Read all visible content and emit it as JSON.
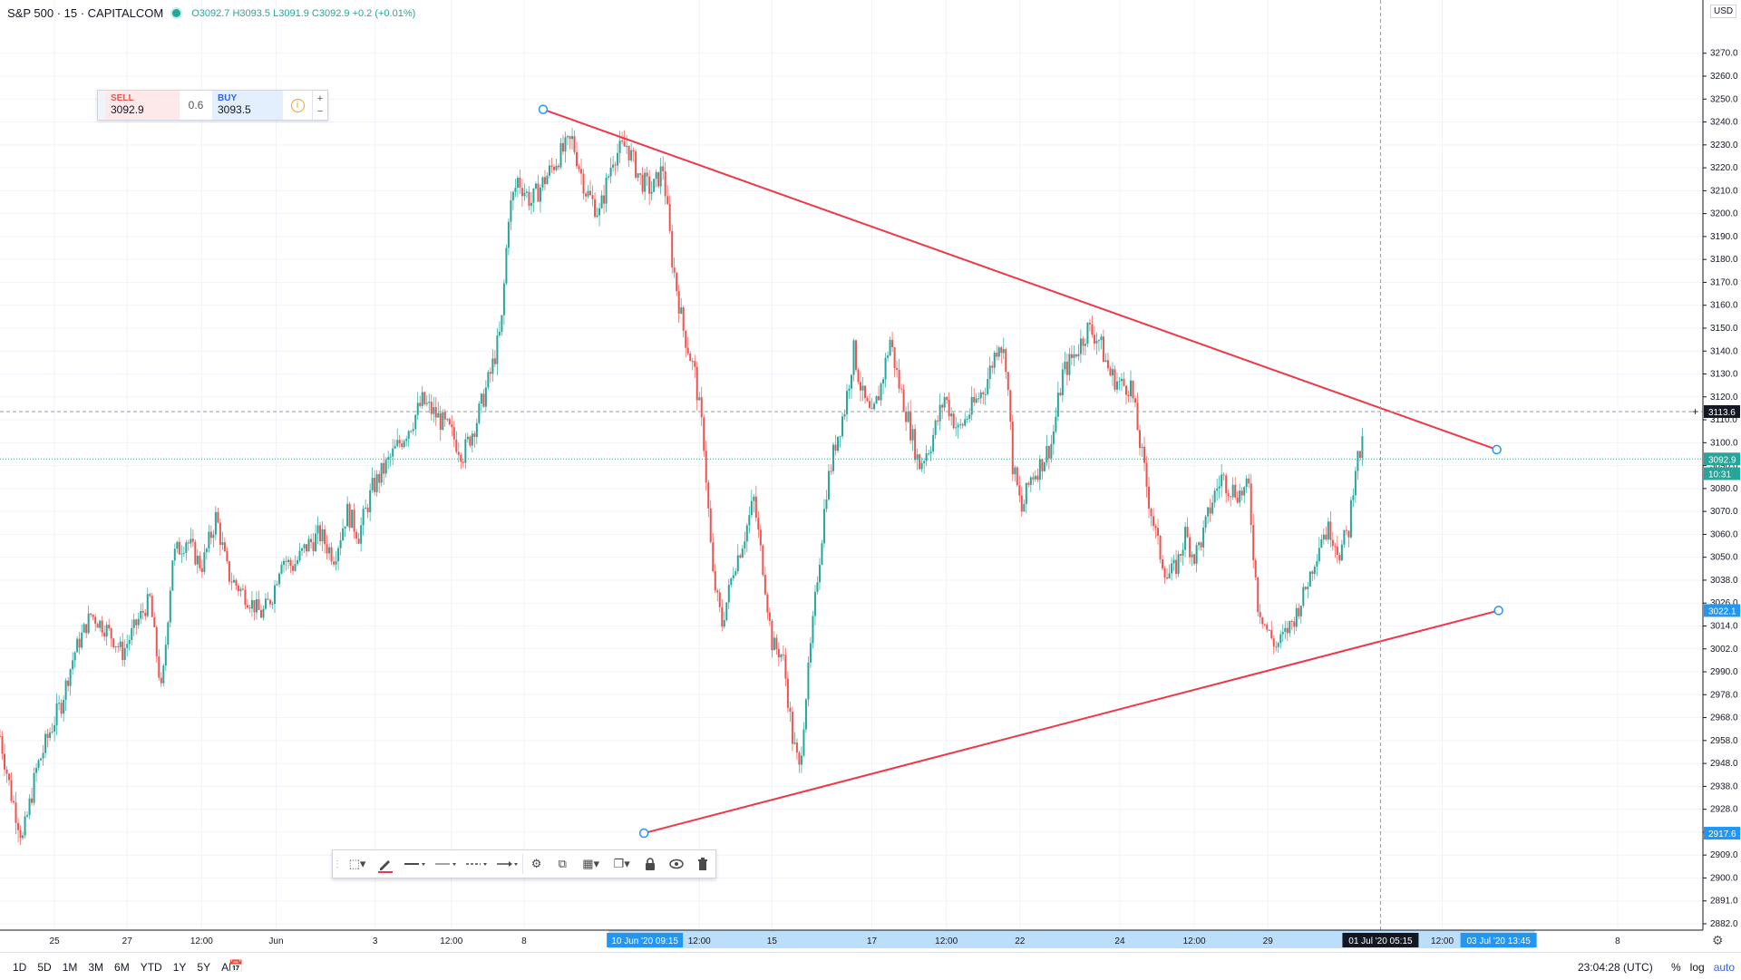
{
  "legend": {
    "symbol": "S&P 500 · 15 · CAPITALCOM",
    "ohlc": "O3092.7 H3093.5 L3091.9 C3092.9 +0.2 (+0.01%)"
  },
  "trade": {
    "sell_label": "SELL",
    "sell_price": "3092.9",
    "spread": "0.6",
    "buy_label": "BUY",
    "buy_price": "3093.5",
    "info": "i",
    "plus": "+",
    "minus": "−"
  },
  "currency": "USD",
  "toolbar": {
    "icons": [
      "select-icon",
      "pencil-icon",
      "line-style-solid-icon",
      "line-style-dashed-icon",
      "line-style-dotted-icon",
      "arrow-line-icon",
      "gear-icon",
      "clone-icon",
      "layers-icon",
      "copy-icon",
      "lock-icon",
      "eye-icon",
      "trash-icon"
    ],
    "accent": "#f23645"
  },
  "bottombar": {
    "ranges": [
      "1D",
      "5D",
      "1M",
      "3M",
      "6M",
      "YTD",
      "1Y",
      "5Y",
      "All"
    ],
    "clock": "23:04:28 (UTC)",
    "pct": "%",
    "log": "log",
    "auto": "auto"
  },
  "colors": {
    "up": "#26a69a",
    "down": "#ef5350",
    "trendline": "#f23645",
    "accent": "#2196f3",
    "axis_text": "#131722"
  },
  "chart_data": {
    "type": "candlestick",
    "interval": "15",
    "y_range": [
      2876,
      3270
    ],
    "y_ticks": [
      2882.0,
      2891.0,
      2900.0,
      2909.0,
      2918.0,
      2928.0,
      2938.0,
      2948.0,
      2958.0,
      2968.0,
      2978.0,
      2990.0,
      3002.0,
      3014.0,
      3026.0,
      3038.0,
      3050.0,
      3060.0,
      3070.0,
      3080.0,
      3090.0,
      3100.0,
      3110.0,
      3120.0,
      3130.0,
      3140.0,
      3150.0,
      3160.0,
      3170.0,
      3180.0,
      3190.0,
      3200.0,
      3210.0,
      3220.0,
      3230.0,
      3240.0,
      3250.0,
      3260.0,
      3270.0
    ],
    "x_range": [
      0,
      1875
    ],
    "x_ticks": [
      {
        "label": "25",
        "x": 60
      },
      {
        "label": "27",
        "x": 140
      },
      {
        "label": "12:00",
        "x": 222
      },
      {
        "label": "Jun",
        "x": 304
      },
      {
        "label": "3",
        "x": 413
      },
      {
        "label": "12:00",
        "x": 497
      },
      {
        "label": "8",
        "x": 577
      },
      {
        "label": "12:00",
        "x": 770
      },
      {
        "label": "15",
        "x": 850
      },
      {
        "label": "17",
        "x": 960
      },
      {
        "label": "12:00",
        "x": 1042
      },
      {
        "label": "22",
        "x": 1123
      },
      {
        "label": "24",
        "x": 1233
      },
      {
        "label": "12:00",
        "x": 1315
      },
      {
        "label": "29",
        "x": 1396
      },
      {
        "label": "12:00",
        "x": 1588
      },
      {
        "label": "8",
        "x": 1781
      }
    ],
    "highlighted_x": [
      {
        "label": "10 Jun '20   09:15",
        "x": 710
      },
      {
        "label": "01 Jul '20   05:15",
        "x": 1520
      },
      {
        "label": "03 Jul '20   13:45",
        "x": 1650
      }
    ],
    "price_path": [
      [
        0,
        2960
      ],
      [
        12,
        2935
      ],
      [
        25,
        2915
      ],
      [
        40,
        2945
      ],
      [
        55,
        2962
      ],
      [
        68,
        2975
      ],
      [
        82,
        3000
      ],
      [
        100,
        3020
      ],
      [
        118,
        3012
      ],
      [
        135,
        3000
      ],
      [
        150,
        3015
      ],
      [
        165,
        3028
      ],
      [
        178,
        2978
      ],
      [
        190,
        3050
      ],
      [
        205,
        3058
      ],
      [
        222,
        3045
      ],
      [
        238,
        3068
      ],
      [
        252,
        3040
      ],
      [
        270,
        3030
      ],
      [
        288,
        3020
      ],
      [
        300,
        3030
      ],
      [
        310,
        3050
      ],
      [
        322,
        3045
      ],
      [
        338,
        3055
      ],
      [
        352,
        3060
      ],
      [
        368,
        3050
      ],
      [
        382,
        3070
      ],
      [
        395,
        3060
      ],
      [
        410,
        3080
      ],
      [
        425,
        3090
      ],
      [
        440,
        3100
      ],
      [
        455,
        3110
      ],
      [
        465,
        3118
      ],
      [
        480,
        3112
      ],
      [
        495,
        3105
      ],
      [
        510,
        3095
      ],
      [
        525,
        3110
      ],
      [
        540,
        3130
      ],
      [
        552,
        3150
      ],
      [
        560,
        3200
      ],
      [
        570,
        3215
      ],
      [
        585,
        3205
      ],
      [
        600,
        3215
      ],
      [
        615,
        3225
      ],
      [
        630,
        3232
      ],
      [
        645,
        3210
      ],
      [
        660,
        3200
      ],
      [
        675,
        3225
      ],
      [
        690,
        3230
      ],
      [
        705,
        3215
      ],
      [
        718,
        3210
      ],
      [
        730,
        3220
      ],
      [
        740,
        3180
      ],
      [
        752,
        3150
      ],
      [
        765,
        3130
      ],
      [
        775,
        3100
      ],
      [
        785,
        3040
      ],
      [
        795,
        3015
      ],
      [
        808,
        3045
      ],
      [
        820,
        3060
      ],
      [
        830,
        3075
      ],
      [
        840,
        3045
      ],
      [
        850,
        3005
      ],
      [
        862,
        2998
      ],
      [
        872,
        2960
      ],
      [
        880,
        2945
      ],
      [
        890,
        2990
      ],
      [
        900,
        3040
      ],
      [
        910,
        3080
      ],
      [
        920,
        3100
      ],
      [
        930,
        3115
      ],
      [
        940,
        3140
      ],
      [
        950,
        3120
      ],
      [
        960,
        3110
      ],
      [
        970,
        3125
      ],
      [
        980,
        3145
      ],
      [
        990,
        3125
      ],
      [
        1000,
        3110
      ],
      [
        1012,
        3090
      ],
      [
        1025,
        3100
      ],
      [
        1040,
        3120
      ],
      [
        1055,
        3105
      ],
      [
        1070,
        3115
      ],
      [
        1085,
        3125
      ],
      [
        1100,
        3145
      ],
      [
        1108,
        3135
      ],
      [
        1115,
        3090
      ],
      [
        1125,
        3070
      ],
      [
        1135,
        3085
      ],
      [
        1145,
        3090
      ],
      [
        1158,
        3100
      ],
      [
        1170,
        3130
      ],
      [
        1185,
        3140
      ],
      [
        1198,
        3150
      ],
      [
        1210,
        3145
      ],
      [
        1222,
        3130
      ],
      [
        1235,
        3125
      ],
      [
        1245,
        3125
      ],
      [
        1255,
        3100
      ],
      [
        1265,
        3075
      ],
      [
        1275,
        3055
      ],
      [
        1285,
        3040
      ],
      [
        1295,
        3045
      ],
      [
        1305,
        3060
      ],
      [
        1315,
        3050
      ],
      [
        1325,
        3060
      ],
      [
        1335,
        3075
      ],
      [
        1345,
        3085
      ],
      [
        1355,
        3080
      ],
      [
        1365,
        3078
      ],
      [
        1375,
        3080
      ],
      [
        1385,
        3025
      ],
      [
        1395,
        3012
      ],
      [
        1405,
        3003
      ],
      [
        1415,
        3010
      ],
      [
        1425,
        3018
      ],
      [
        1435,
        3030
      ],
      [
        1445,
        3045
      ],
      [
        1455,
        3060
      ],
      [
        1465,
        3062
      ],
      [
        1475,
        3052
      ],
      [
        1485,
        3062
      ],
      [
        1492,
        3090
      ],
      [
        1500,
        3098
      ]
    ],
    "trendlines": [
      {
        "name": "upper",
        "from": {
          "x": 598,
          "y": 3245.5
        },
        "to": {
          "x": 1648,
          "y": 3097
        }
      },
      {
        "name": "lower",
        "from": {
          "x": 709,
          "y": 2917.6
        },
        "to": {
          "x": 1650,
          "y": 3022.1
        }
      }
    ],
    "price_labels": [
      {
        "label": "3113.6",
        "y": 3113.6,
        "color": "#131722"
      },
      {
        "label": "3092.9",
        "y": 3092.9,
        "color": "#26a69a"
      },
      {
        "label": "10:31",
        "y": 3086.5,
        "color": "#26a69a"
      },
      {
        "label": "3022.1",
        "y": 3022.1,
        "color": "#2196f3"
      },
      {
        "label": "2917.6",
        "y": 2917.6,
        "color": "#2196f3"
      }
    ],
    "crosshair": {
      "x": 1520,
      "y": 3113.6
    },
    "last_price": 3092.9
  }
}
